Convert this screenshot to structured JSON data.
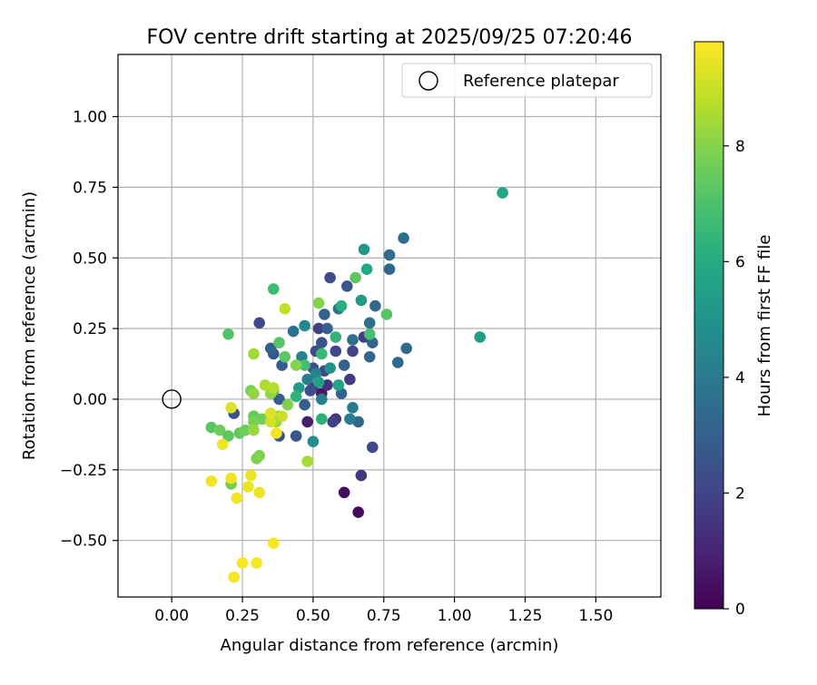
{
  "chart_data": {
    "type": "scatter",
    "title": "FOV centre drift starting at 2025/09/25 07:20:46",
    "xlabel": "Angular distance from reference (arcmin)",
    "ylabel": "Rotation from reference (arcmin)",
    "xlim": [
      -0.19,
      1.73
    ],
    "ylim": [
      -0.7,
      1.22
    ],
    "xticks": [
      0.0,
      0.25,
      0.5,
      0.75,
      1.0,
      1.25,
      1.5
    ],
    "xtick_labels": [
      "0.00",
      "0.25",
      "0.50",
      "0.75",
      "1.00",
      "1.25",
      "1.50"
    ],
    "yticks": [
      -0.5,
      -0.25,
      0.0,
      0.25,
      0.5,
      0.75,
      1.0
    ],
    "ytick_labels": [
      "−0.50",
      "−0.25",
      "0.00",
      "0.25",
      "0.50",
      "0.75",
      "1.00"
    ],
    "grid": true,
    "legend": {
      "position": "top-right",
      "entries": [
        "Reference platepar"
      ]
    },
    "reference_point": {
      "x": 0.0,
      "y": 0.0,
      "marker": "open-circle"
    },
    "colorbar": {
      "label": "Hours from first FF file",
      "colormap": "viridis",
      "range": [
        0,
        9.8
      ],
      "ticks": [
        0,
        2,
        4,
        6,
        8
      ],
      "tick_labels": [
        "0",
        "2",
        "4",
        "6",
        "8"
      ]
    },
    "series": [
      {
        "name": "FOV centre drift",
        "points": [
          {
            "x": 0.61,
            "y": -0.33,
            "c": 0.3
          },
          {
            "x": 0.66,
            "y": -0.4,
            "c": 0.3
          },
          {
            "x": 0.53,
            "y": 0.02,
            "c": 0.6
          },
          {
            "x": 0.48,
            "y": -0.08,
            "c": 0.8
          },
          {
            "x": 0.67,
            "y": -0.27,
            "c": 1.5
          },
          {
            "x": 0.58,
            "y": -0.07,
            "c": 1.5
          },
          {
            "x": 0.55,
            "y": 0.05,
            "c": 1.4
          },
          {
            "x": 0.5,
            "y": 0.04,
            "c": 1.6
          },
          {
            "x": 0.52,
            "y": 0.25,
            "c": 1.8
          },
          {
            "x": 0.63,
            "y": 0.07,
            "c": 1.7
          },
          {
            "x": 0.57,
            "y": -0.08,
            "c": 1.9
          },
          {
            "x": 0.68,
            "y": 0.22,
            "c": 1.9
          },
          {
            "x": 0.64,
            "y": 0.17,
            "c": 2.0
          },
          {
            "x": 0.58,
            "y": 0.17,
            "c": 2.1
          },
          {
            "x": 0.71,
            "y": -0.17,
            "c": 2.1
          },
          {
            "x": 0.31,
            "y": 0.27,
            "c": 2.1
          },
          {
            "x": 0.51,
            "y": 0.17,
            "c": 2.2
          },
          {
            "x": 0.54,
            "y": 0.1,
            "c": 2.0
          },
          {
            "x": 0.49,
            "y": 0.03,
            "c": 2.3
          },
          {
            "x": 0.56,
            "y": 0.43,
            "c": 2.3
          },
          {
            "x": 0.5,
            "y": 0.11,
            "c": 2.4
          },
          {
            "x": 0.53,
            "y": 0.2,
            "c": 2.5
          },
          {
            "x": 0.62,
            "y": 0.4,
            "c": 2.6
          },
          {
            "x": 0.22,
            "y": -0.05,
            "c": 2.5
          },
          {
            "x": 0.38,
            "y": -0.13,
            "c": 2.5
          },
          {
            "x": 0.44,
            "y": -0.13,
            "c": 2.7
          },
          {
            "x": 0.36,
            "y": 0.16,
            "c": 2.7
          },
          {
            "x": 0.38,
            "y": 0.0,
            "c": 2.8
          },
          {
            "x": 0.39,
            "y": 0.12,
            "c": 2.9
          },
          {
            "x": 0.47,
            "y": -0.02,
            "c": 2.9
          },
          {
            "x": 0.35,
            "y": 0.18,
            "c": 3.0
          },
          {
            "x": 0.54,
            "y": 0.3,
            "c": 3.0
          },
          {
            "x": 0.55,
            "y": 0.25,
            "c": 3.0
          },
          {
            "x": 0.6,
            "y": 0.02,
            "c": 3.1
          },
          {
            "x": 0.61,
            "y": 0.12,
            "c": 3.1
          },
          {
            "x": 0.66,
            "y": -0.08,
            "c": 3.2
          },
          {
            "x": 0.7,
            "y": 0.15,
            "c": 3.2
          },
          {
            "x": 0.71,
            "y": 0.2,
            "c": 3.2
          },
          {
            "x": 0.72,
            "y": 0.33,
            "c": 3.3
          },
          {
            "x": 0.77,
            "y": 0.46,
            "c": 3.3
          },
          {
            "x": 0.77,
            "y": 0.51,
            "c": 3.4
          },
          {
            "x": 0.8,
            "y": 0.13,
            "c": 3.4
          },
          {
            "x": 0.83,
            "y": 0.18,
            "c": 3.4
          },
          {
            "x": 0.82,
            "y": 0.57,
            "c": 3.5
          },
          {
            "x": 0.7,
            "y": 0.27,
            "c": 3.6
          },
          {
            "x": 0.64,
            "y": 0.21,
            "c": 3.6
          },
          {
            "x": 0.43,
            "y": 0.24,
            "c": 3.7
          },
          {
            "x": 0.59,
            "y": 0.32,
            "c": 3.9
          },
          {
            "x": 0.64,
            "y": -0.03,
            "c": 4.0
          },
          {
            "x": 0.63,
            "y": -0.07,
            "c": 4.1
          },
          {
            "x": 0.53,
            "y": 0.0,
            "c": 4.2
          },
          {
            "x": 0.48,
            "y": 0.07,
            "c": 4.2
          },
          {
            "x": 0.51,
            "y": 0.09,
            "c": 4.3
          },
          {
            "x": 0.46,
            "y": 0.15,
            "c": 4.4
          },
          {
            "x": 0.47,
            "y": 0.26,
            "c": 4.6
          },
          {
            "x": 0.5,
            "y": -0.15,
            "c": 4.8
          },
          {
            "x": 0.56,
            "y": 0.11,
            "c": 5.0
          },
          {
            "x": 0.68,
            "y": 0.53,
            "c": 5.1
          },
          {
            "x": 0.67,
            "y": 0.35,
            "c": 5.3
          },
          {
            "x": 0.45,
            "y": 0.04,
            "c": 5.3
          },
          {
            "x": 0.52,
            "y": 0.06,
            "c": 5.6
          },
          {
            "x": 0.59,
            "y": 0.05,
            "c": 5.7
          },
          {
            "x": 1.09,
            "y": 0.22,
            "c": 5.4
          },
          {
            "x": 1.17,
            "y": 0.73,
            "c": 5.8
          },
          {
            "x": 0.69,
            "y": 0.46,
            "c": 5.9
          },
          {
            "x": 0.6,
            "y": 0.33,
            "c": 6.1
          },
          {
            "x": 0.53,
            "y": -0.07,
            "c": 6.2
          },
          {
            "x": 0.44,
            "y": 0.01,
            "c": 6.3
          },
          {
            "x": 0.58,
            "y": 0.22,
            "c": 6.4
          },
          {
            "x": 0.53,
            "y": 0.16,
            "c": 6.5
          },
          {
            "x": 0.36,
            "y": 0.39,
            "c": 6.7
          },
          {
            "x": 0.47,
            "y": 0.12,
            "c": 6.8
          },
          {
            "x": 0.7,
            "y": 0.23,
            "c": 6.9
          },
          {
            "x": 0.36,
            "y": 0.03,
            "c": 7.0
          },
          {
            "x": 0.2,
            "y": 0.23,
            "c": 7.1
          },
          {
            "x": 0.38,
            "y": 0.2,
            "c": 7.2
          },
          {
            "x": 0.4,
            "y": 0.15,
            "c": 7.3
          },
          {
            "x": 0.76,
            "y": 0.3,
            "c": 7.2
          },
          {
            "x": 0.65,
            "y": 0.43,
            "c": 7.3
          },
          {
            "x": 0.24,
            "y": -0.12,
            "c": 7.4
          },
          {
            "x": 0.26,
            "y": -0.11,
            "c": 7.6
          },
          {
            "x": 0.14,
            "y": -0.1,
            "c": 7.2
          },
          {
            "x": 0.17,
            "y": -0.11,
            "c": 7.6
          },
          {
            "x": 0.2,
            "y": -0.13,
            "c": 7.3
          },
          {
            "x": 0.29,
            "y": -0.06,
            "c": 7.5
          },
          {
            "x": 0.32,
            "y": -0.07,
            "c": 7.6
          },
          {
            "x": 0.21,
            "y": -0.3,
            "c": 7.7
          },
          {
            "x": 0.29,
            "y": -0.08,
            "c": 7.8
          },
          {
            "x": 0.31,
            "y": -0.2,
            "c": 7.8
          },
          {
            "x": 0.3,
            "y": -0.21,
            "c": 7.9
          },
          {
            "x": 0.28,
            "y": 0.03,
            "c": 7.8
          },
          {
            "x": 0.38,
            "y": -0.06,
            "c": 7.9
          },
          {
            "x": 0.41,
            "y": -0.02,
            "c": 7.9
          },
          {
            "x": 0.44,
            "y": 0.12,
            "c": 8.0
          },
          {
            "x": 0.52,
            "y": 0.34,
            "c": 8.0
          },
          {
            "x": 0.35,
            "y": 0.02,
            "c": 8.1
          },
          {
            "x": 0.29,
            "y": 0.02,
            "c": 8.2
          },
          {
            "x": 0.29,
            "y": -0.11,
            "c": 8.3
          },
          {
            "x": 0.29,
            "y": 0.16,
            "c": 8.4
          },
          {
            "x": 0.37,
            "y": -0.08,
            "c": 8.4
          },
          {
            "x": 0.48,
            "y": -0.22,
            "c": 8.5
          },
          {
            "x": 0.33,
            "y": 0.05,
            "c": 8.6
          },
          {
            "x": 0.36,
            "y": 0.04,
            "c": 8.7
          },
          {
            "x": 0.4,
            "y": 0.32,
            "c": 8.9
          },
          {
            "x": 0.39,
            "y": -0.06,
            "c": 9.0
          },
          {
            "x": 0.35,
            "y": -0.08,
            "c": 9.1
          },
          {
            "x": 0.35,
            "y": -0.05,
            "c": 9.3
          },
          {
            "x": 0.21,
            "y": -0.03,
            "c": 9.3
          },
          {
            "x": 0.28,
            "y": -0.27,
            "c": 9.5
          },
          {
            "x": 0.27,
            "y": -0.31,
            "c": 9.5
          },
          {
            "x": 0.31,
            "y": -0.33,
            "c": 9.5
          },
          {
            "x": 0.21,
            "y": -0.28,
            "c": 9.6
          },
          {
            "x": 0.14,
            "y": -0.29,
            "c": 9.6
          },
          {
            "x": 0.23,
            "y": -0.35,
            "c": 9.6
          },
          {
            "x": 0.18,
            "y": -0.16,
            "c": 9.6
          },
          {
            "x": 0.37,
            "y": -0.12,
            "c": 9.6
          },
          {
            "x": 0.36,
            "y": -0.51,
            "c": 9.7
          },
          {
            "x": 0.25,
            "y": -0.58,
            "c": 9.7
          },
          {
            "x": 0.3,
            "y": -0.58,
            "c": 9.7
          },
          {
            "x": 0.22,
            "y": -0.63,
            "c": 9.7
          }
        ]
      }
    ]
  }
}
